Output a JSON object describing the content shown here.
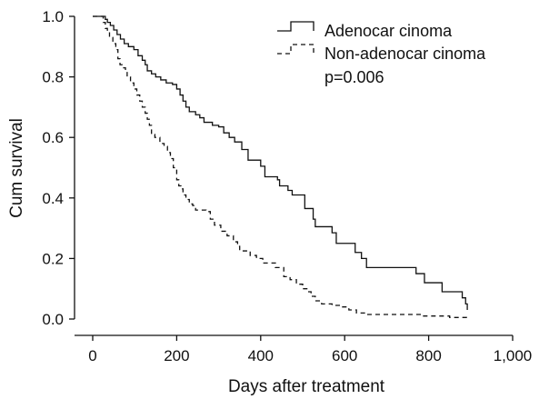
{
  "chart_data": {
    "type": "line",
    "title": "",
    "xlabel": "Days after treatment",
    "ylabel": "Cum survival",
    "xlim": [
      0,
      1000
    ],
    "ylim": [
      0,
      1.0
    ],
    "x_ticks": [
      0,
      200,
      400,
      600,
      800,
      1000
    ],
    "x_tick_labels": [
      "0",
      "200",
      "400",
      "600",
      "800",
      "1,000"
    ],
    "y_ticks": [
      0.0,
      0.2,
      0.4,
      0.6,
      0.8,
      1.0
    ],
    "y_tick_labels": [
      "0.0",
      "0.2",
      "0.4",
      "0.6",
      "0.8",
      "1.0"
    ],
    "grid": false,
    "legend_position": "top-right",
    "annotation": "p=0.006",
    "series": [
      {
        "name": "Adenocar cinoma",
        "style": "solid",
        "color": "#111111",
        "step": true,
        "points": [
          [
            0,
            1.0
          ],
          [
            25,
            1.0
          ],
          [
            30,
            0.99
          ],
          [
            35,
            0.98
          ],
          [
            42,
            0.97
          ],
          [
            50,
            0.955
          ],
          [
            58,
            0.94
          ],
          [
            66,
            0.925
          ],
          [
            75,
            0.91
          ],
          [
            85,
            0.9
          ],
          [
            98,
            0.89
          ],
          [
            108,
            0.87
          ],
          [
            118,
            0.855
          ],
          [
            125,
            0.84
          ],
          [
            130,
            0.82
          ],
          [
            140,
            0.81
          ],
          [
            150,
            0.8
          ],
          [
            162,
            0.79
          ],
          [
            175,
            0.78
          ],
          [
            190,
            0.775
          ],
          [
            200,
            0.76
          ],
          [
            208,
            0.74
          ],
          [
            215,
            0.72
          ],
          [
            222,
            0.7
          ],
          [
            230,
            0.685
          ],
          [
            245,
            0.675
          ],
          [
            255,
            0.665
          ],
          [
            265,
            0.65
          ],
          [
            285,
            0.64
          ],
          [
            300,
            0.635
          ],
          [
            312,
            0.615
          ],
          [
            325,
            0.6
          ],
          [
            338,
            0.585
          ],
          [
            355,
            0.56
          ],
          [
            370,
            0.525
          ],
          [
            400,
            0.505
          ],
          [
            410,
            0.47
          ],
          [
            440,
            0.46
          ],
          [
            445,
            0.44
          ],
          [
            465,
            0.425
          ],
          [
            475,
            0.41
          ],
          [
            505,
            0.365
          ],
          [
            525,
            0.33
          ],
          [
            530,
            0.305
          ],
          [
            570,
            0.285
          ],
          [
            580,
            0.25
          ],
          [
            625,
            0.22
          ],
          [
            640,
            0.2
          ],
          [
            652,
            0.17
          ],
          [
            770,
            0.15
          ],
          [
            790,
            0.12
          ],
          [
            832,
            0.09
          ],
          [
            880,
            0.07
          ],
          [
            888,
            0.05
          ],
          [
            892,
            0.03
          ]
        ]
      },
      {
        "name": "Non-adenocar cinoma",
        "style": "dashed",
        "color": "#111111",
        "step": true,
        "points": [
          [
            0,
            1.0
          ],
          [
            20,
            1.0
          ],
          [
            25,
            0.98
          ],
          [
            30,
            0.96
          ],
          [
            35,
            0.95
          ],
          [
            40,
            0.93
          ],
          [
            48,
            0.91
          ],
          [
            55,
            0.89
          ],
          [
            60,
            0.86
          ],
          [
            65,
            0.84
          ],
          [
            70,
            0.83
          ],
          [
            78,
            0.82
          ],
          [
            82,
            0.8
          ],
          [
            90,
            0.78
          ],
          [
            98,
            0.76
          ],
          [
            105,
            0.74
          ],
          [
            112,
            0.72
          ],
          [
            118,
            0.7
          ],
          [
            125,
            0.68
          ],
          [
            130,
            0.66
          ],
          [
            135,
            0.64
          ],
          [
            140,
            0.61
          ],
          [
            148,
            0.6
          ],
          [
            160,
            0.58
          ],
          [
            170,
            0.57
          ],
          [
            178,
            0.55
          ],
          [
            185,
            0.53
          ],
          [
            192,
            0.5
          ],
          [
            200,
            0.46
          ],
          [
            205,
            0.44
          ],
          [
            210,
            0.43
          ],
          [
            215,
            0.41
          ],
          [
            222,
            0.395
          ],
          [
            230,
            0.38
          ],
          [
            238,
            0.375
          ],
          [
            245,
            0.36
          ],
          [
            270,
            0.355
          ],
          [
            280,
            0.33
          ],
          [
            290,
            0.31
          ],
          [
            305,
            0.29
          ],
          [
            320,
            0.275
          ],
          [
            335,
            0.255
          ],
          [
            345,
            0.24
          ],
          [
            350,
            0.225
          ],
          [
            375,
            0.21
          ],
          [
            390,
            0.2
          ],
          [
            405,
            0.185
          ],
          [
            435,
            0.17
          ],
          [
            455,
            0.14
          ],
          [
            470,
            0.13
          ],
          [
            485,
            0.115
          ],
          [
            500,
            0.1
          ],
          [
            510,
            0.09
          ],
          [
            520,
            0.075
          ],
          [
            530,
            0.06
          ],
          [
            545,
            0.05
          ],
          [
            570,
            0.045
          ],
          [
            595,
            0.04
          ],
          [
            610,
            0.03
          ],
          [
            628,
            0.02
          ],
          [
            655,
            0.015
          ],
          [
            780,
            0.01
          ],
          [
            850,
            0.005
          ],
          [
            890,
            0.0
          ]
        ]
      }
    ]
  }
}
